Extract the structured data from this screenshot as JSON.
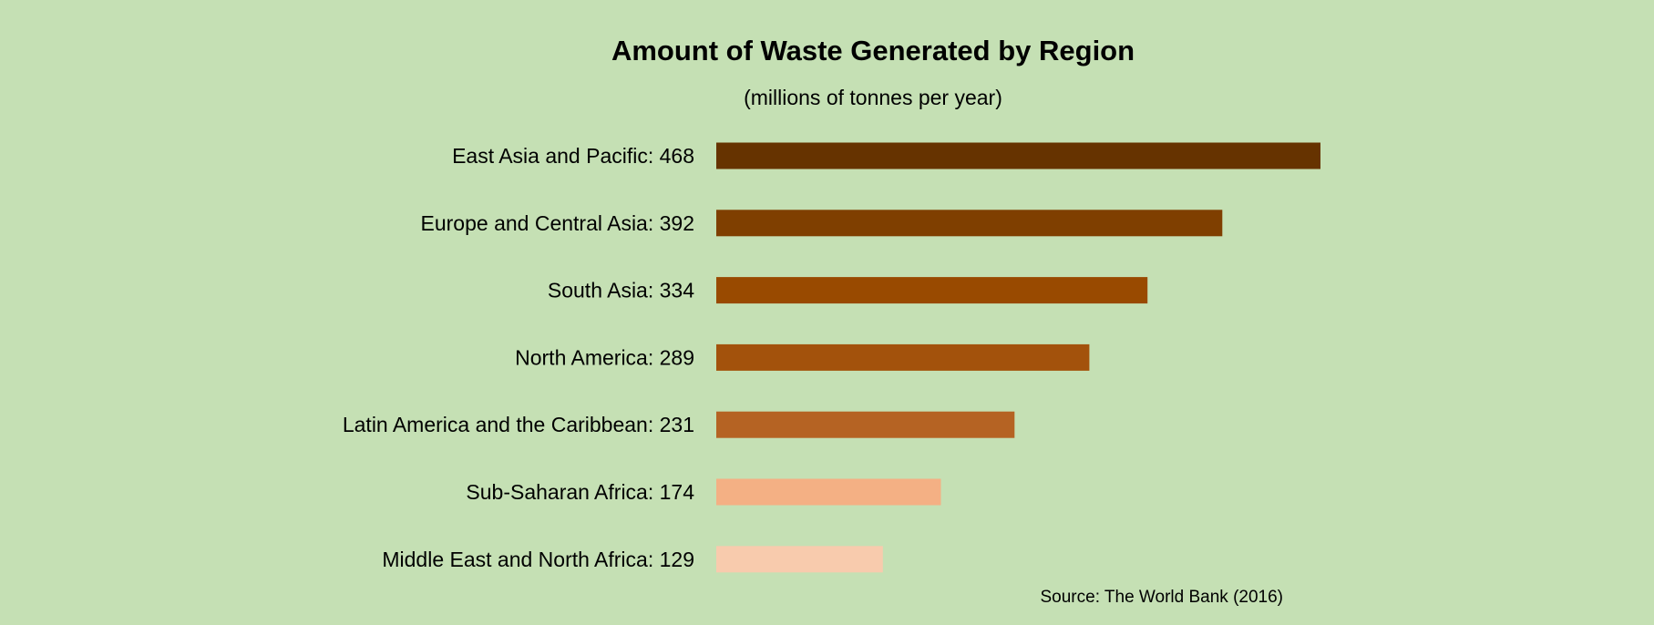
{
  "chart_data": {
    "type": "bar",
    "orientation": "horizontal",
    "title": "Amount of Waste Generated by Region",
    "subtitle": "(millions of tonnes per year)",
    "source": "Source: The World Bank (2016)",
    "categories": [
      "East Asia and Pacific",
      "Europe and Central Asia",
      "South Asia",
      "North America",
      "Latin America and the Caribbean",
      "Sub-Saharan Africa",
      "Middle East and North Africa"
    ],
    "values": [
      468,
      392,
      334,
      289,
      231,
      174,
      129
    ],
    "labels": [
      "East Asia and Pacific: 468",
      "Europe and Central Asia: 392",
      "South Asia: 334",
      "North America: 289",
      "Latin America and the Caribbean: 231",
      "Sub-Saharan Africa: 174",
      "Middle East and North Africa: 129"
    ],
    "colors": [
      "#663300",
      "#7f3f00",
      "#994a00",
      "#a3520c",
      "#b56323",
      "#f4b084",
      "#f8cbad"
    ],
    "background_color": "#c5e0b4",
    "xlim": [
      0,
      468
    ],
    "grid": false,
    "legend": "none",
    "axes_visible": false
  }
}
